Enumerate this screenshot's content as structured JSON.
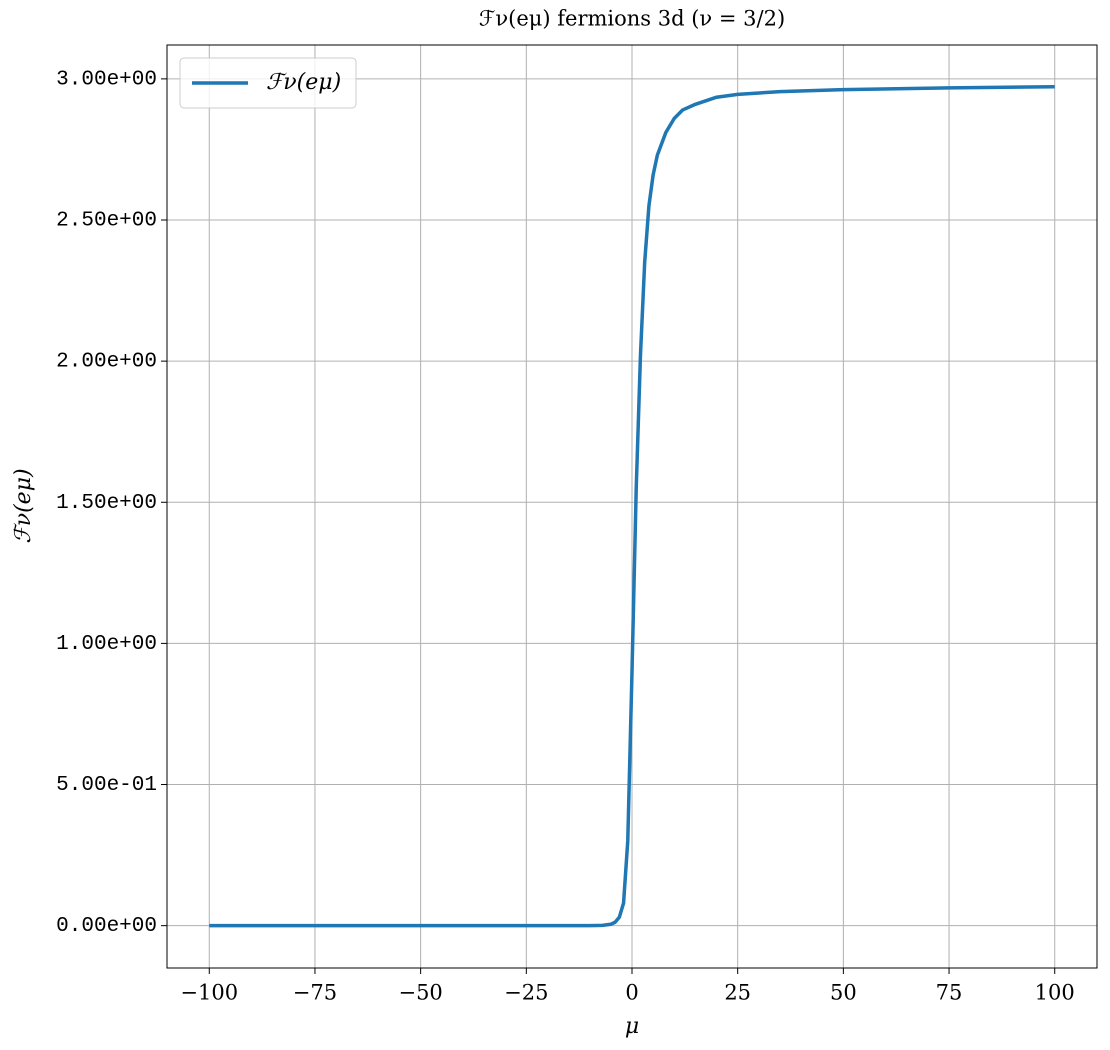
{
  "chart_data": {
    "type": "line",
    "title": "ℱν(eμ) fermions 3d (ν = 3/2)",
    "x_label": "μ",
    "y_label": "ℱν(eμ)",
    "x": [
      -100,
      -75,
      -50,
      -25,
      -10,
      -7,
      -5,
      -4,
      -3,
      -2,
      -1,
      0,
      1,
      2,
      3,
      4,
      5,
      6,
      8,
      10,
      12,
      15,
      20,
      25,
      35,
      50,
      75,
      100
    ],
    "series": [
      {
        "name": "ℱν(eμ)",
        "color": "#1f77b4",
        "values": [
          0,
          0,
          0,
          0,
          0,
          0.001,
          0.005,
          0.012,
          0.03,
          0.08,
          0.3,
          0.9,
          1.55,
          2.02,
          2.35,
          2.55,
          2.66,
          2.73,
          2.81,
          2.86,
          2.89,
          2.91,
          2.935,
          2.945,
          2.955,
          2.962,
          2.968,
          2.972
        ]
      }
    ],
    "xlim": [
      -110,
      110
    ],
    "ylim": [
      -0.15,
      3.12
    ],
    "xticks": [
      {
        "value": -100,
        "label": "−100"
      },
      {
        "value": -75,
        "label": "−75"
      },
      {
        "value": -50,
        "label": "−50"
      },
      {
        "value": -25,
        "label": "−25"
      },
      0,
      25,
      50,
      75,
      100
    ],
    "yticks": [
      {
        "value": 0,
        "label": "0.00e+00"
      },
      {
        "value": 0.5,
        "label": "5.00e-01"
      },
      {
        "value": 1,
        "label": "1.00e+00"
      },
      {
        "value": 1.5,
        "label": "1.50e+00"
      },
      {
        "value": 2,
        "label": "2.00e+00"
      },
      {
        "value": 2.5,
        "label": "2.50e+00"
      },
      {
        "value": 3,
        "label": "3.00e+00"
      }
    ],
    "grid": true,
    "legend": "upper-left"
  }
}
